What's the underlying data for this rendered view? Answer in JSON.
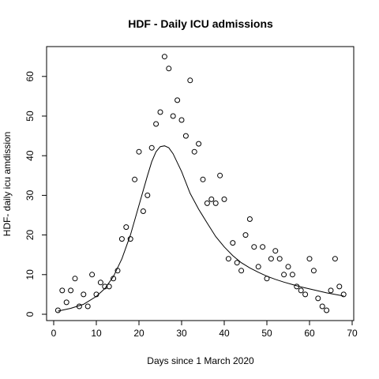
{
  "chart_data": {
    "type": "scatter",
    "title": "HDF - Daily ICU admissions",
    "xlabel": "Days since 1 March 2020",
    "ylabel": "HDF- daily icu amdission",
    "xlim": [
      0,
      70
    ],
    "ylim": [
      0,
      65
    ],
    "x_ticks": [
      0,
      10,
      20,
      30,
      40,
      50,
      60,
      70
    ],
    "y_ticks": [
      0,
      10,
      20,
      30,
      40,
      50,
      60
    ],
    "grid": false,
    "legend": "none",
    "series": [
      {
        "mode": "points",
        "marker": "open-circle",
        "x": [
          1,
          2,
          3,
          4,
          5,
          6,
          7,
          8,
          9,
          10,
          11,
          12,
          13,
          14,
          15,
          16,
          17,
          18,
          19,
          20,
          21,
          22,
          23,
          24,
          25,
          26,
          27,
          28,
          29,
          30,
          31,
          32,
          33,
          34,
          35,
          36,
          37,
          38,
          39,
          40,
          41,
          42,
          43,
          44,
          45,
          46,
          47,
          48,
          49,
          50,
          51,
          52,
          53,
          54,
          55,
          56,
          57,
          58,
          59,
          60,
          61,
          62,
          63,
          64,
          65,
          66,
          67,
          68
        ],
        "y": [
          1,
          6,
          3,
          6,
          9,
          2,
          5,
          2,
          10,
          5,
          8,
          7,
          7,
          9,
          11,
          19,
          22,
          19,
          34,
          41,
          26,
          30,
          42,
          48,
          51,
          65,
          62,
          50,
          54,
          49,
          45,
          59,
          41,
          43,
          34,
          28,
          29,
          28,
          35,
          29,
          14,
          18,
          13,
          11,
          20,
          24,
          17,
          12,
          17,
          9,
          14,
          16,
          14,
          10,
          12,
          10,
          7,
          6,
          5,
          14,
          11,
          4,
          2,
          1,
          6,
          14,
          7,
          5
        ]
      },
      {
        "mode": "line",
        "x": [
          1,
          4,
          7,
          10,
          12,
          14,
          16,
          18,
          20,
          22,
          23,
          24,
          25,
          26,
          27,
          28,
          30,
          32,
          34,
          36,
          38,
          40,
          42,
          44,
          46,
          48,
          50,
          52,
          54,
          56,
          58,
          60,
          62,
          64,
          66,
          68
        ],
        "y": [
          0.8,
          1.5,
          2.5,
          4.5,
          6.5,
          9.5,
          14,
          20,
          27.5,
          35,
          38.5,
          41,
          42.3,
          42.5,
          42,
          40.5,
          36,
          30.5,
          26.5,
          23,
          19.6,
          17,
          14.8,
          13,
          11.7,
          10.6,
          9.6,
          8.8,
          8.1,
          7.5,
          6.9,
          6.4,
          5.9,
          5.4,
          5,
          4.6
        ]
      }
    ]
  }
}
